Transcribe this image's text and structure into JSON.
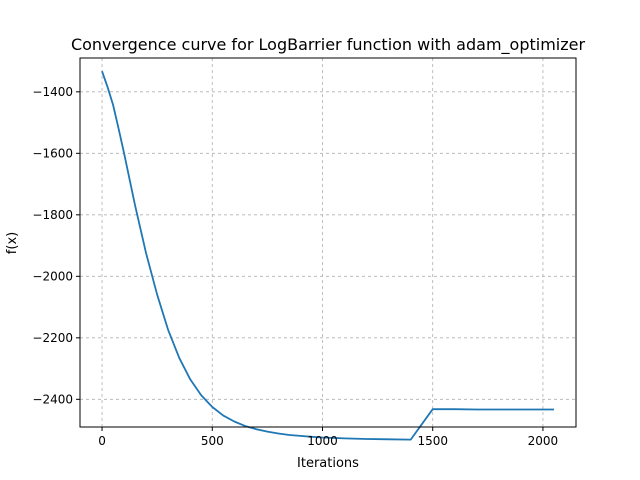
{
  "chart_data": {
    "type": "line",
    "title": "Convergence curve for LogBarrier function with adam_optimizer",
    "xlabel": "Iterations",
    "ylabel": "f(x)",
    "xlim": [
      -100,
      2150
    ],
    "ylim": [
      -2490,
      -1290
    ],
    "xticks": [
      0,
      500,
      1000,
      1500,
      2000
    ],
    "yticks": [
      -2400,
      -2200,
      -2000,
      -1800,
      -1600,
      -1400
    ],
    "xtick_labels": [
      "0",
      "500",
      "1000",
      "1500",
      "2000"
    ],
    "ytick_labels": [
      "−2400",
      "−2200",
      "−2000",
      "−1800",
      "−1600",
      "−1400"
    ],
    "grid": true,
    "series": [
      {
        "color": "#1f77b4",
        "x": [
          0,
          25,
          50,
          75,
          100,
          150,
          200,
          250,
          300,
          350,
          400,
          450,
          500,
          550,
          600,
          650,
          700,
          750,
          800,
          850,
          900,
          950,
          1000,
          1100,
          1200,
          1300,
          1400,
          1500,
          1600,
          1700,
          1800,
          1900,
          2000,
          2050
        ],
        "y": [
          -1333,
          -1385,
          -1443,
          -1520,
          -1600,
          -1770,
          -1925,
          -2060,
          -2175,
          -2265,
          -2335,
          -2387,
          -2425,
          -2453,
          -2472,
          -2487,
          -2497,
          -2505,
          -2511,
          -2516,
          -2519,
          -2522,
          -2524,
          -2527,
          -2529,
          -2530,
          -2531,
          -2432,
          -2432,
          -2433,
          -2433,
          -2433,
          -2433,
          -2433
        ]
      }
    ]
  }
}
